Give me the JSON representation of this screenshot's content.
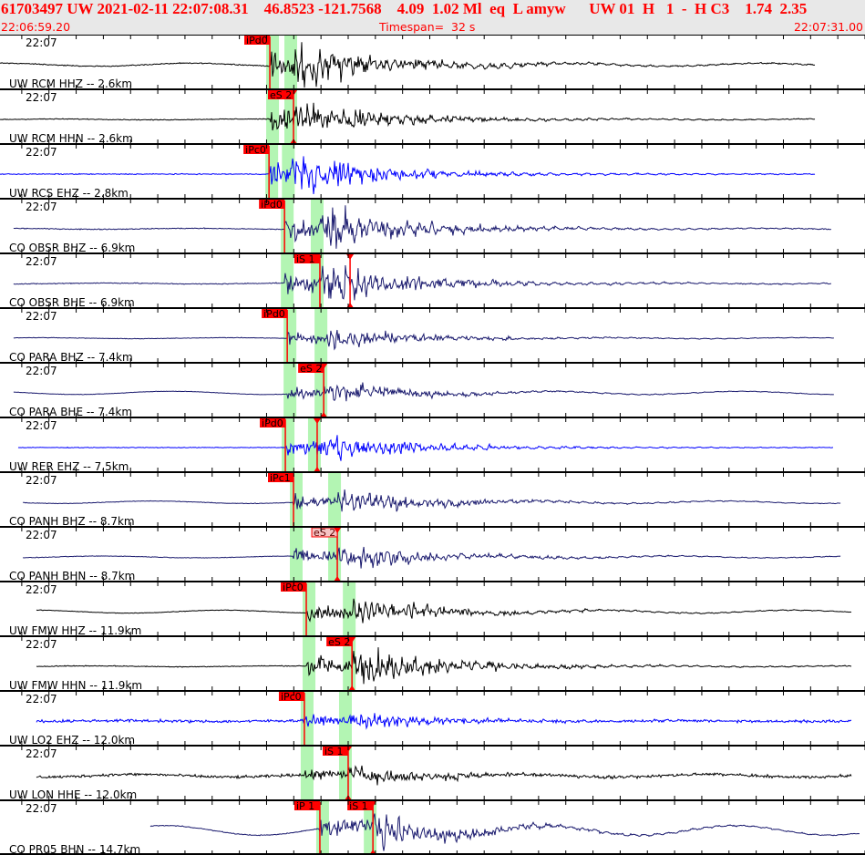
{
  "header": {
    "event_line": "61703497 UW 2021-02-11 22:07:08.31    46.8523 -121.7568    4.09  1.02 Ml  eq  L amyw      UW 01  H   1  -  H C3    1.74  2.35",
    "start_time": "22:06:59.20",
    "timespan": "Timespan=  32 s",
    "end_time": "22:07:31.00"
  },
  "window": {
    "start": "22:06:59.20",
    "end": "22:07:31.00",
    "tick_interval_s": 1
  },
  "colors": {
    "pick": "#ff0000",
    "window": "#b3f5b3",
    "pick_pending": "#f6c4c4",
    "header_bg": "#e8e8e8"
  },
  "panels": [
    {
      "time_label": "22:07",
      "station": "UW RCM HHZ -- 2.6km",
      "color": "#000000",
      "trace": [
        "22:06:59.20",
        "22:07:29.19"
      ],
      "p": "22:07:09.12",
      "s": "22:07:09.99",
      "amp": 1.0,
      "lf": 0.15,
      "picks": [
        {
          "label": "iPd0",
          "time": "22:07:09.12",
          "style": "auto"
        }
      ]
    },
    {
      "time_label": "22:07",
      "station": "UW RCM HHN -- 2.6km",
      "color": "#000000",
      "trace": [
        "22:06:59.20",
        "22:07:29.19"
      ],
      "p": "22:07:09.12",
      "s": "22:07:09.99",
      "amp": 0.8,
      "lf": 0.05,
      "picks": [
        {
          "label": "eS 2",
          "time": "22:07:09.99",
          "style": "auto",
          "tri": true
        }
      ]
    },
    {
      "time_label": "22:07",
      "station": "UW RCS EHZ -- 2.8km",
      "color": "#0000ff",
      "trace": [
        "22:06:59.20",
        "22:07:29.19"
      ],
      "p": "22:07:09.09",
      "s": "22:07:09.90",
      "amp": 0.9,
      "lf": 0,
      "picks": [
        {
          "label": "iPc0",
          "time": "22:07:09.09",
          "style": "auto"
        }
      ]
    },
    {
      "time_label": "22:07",
      "station": "CO OBSR BHZ -- 6.9km",
      "color": "#1a1a6e",
      "trace": [
        "22:06:59.70",
        "22:07:29.76"
      ],
      "p": "22:07:09.66",
      "s": "22:07:10.96",
      "amp": 0.9,
      "lf": 0.05,
      "picks": [
        {
          "label": "iPd0",
          "time": "22:07:09.66",
          "style": "auto"
        }
      ]
    },
    {
      "time_label": "22:07",
      "station": "CO OBSR BHE -- 6.9km",
      "color": "#1a1a6e",
      "trace": [
        "22:06:59.70",
        "22:07:29.76"
      ],
      "p": "22:07:09.66",
      "s": "22:07:10.96",
      "amp": 0.9,
      "lf": 0.05,
      "picks": [
        {
          "label": "iS 1",
          "time": "22:07:10.96",
          "style": "auto"
        },
        {
          "label": "",
          "time": "22:07:12.07",
          "style": "marker",
          "tri": true
        }
      ]
    },
    {
      "time_label": "22:07",
      "station": "CO PARA BHZ -- 7.4km",
      "color": "#1a1a6e",
      "trace": [
        "22:06:59.70",
        "22:07:29.86"
      ],
      "p": "22:07:09.76",
      "s": "22:07:11.10",
      "amp": 0.5,
      "lf": 0.1,
      "picks": [
        {
          "label": "iPd0",
          "time": "22:07:09.76",
          "style": "auto"
        }
      ]
    },
    {
      "time_label": "22:07",
      "station": "CO PARA BHE -- 7.4km",
      "color": "#1a1a6e",
      "trace": [
        "22:06:59.70",
        "22:07:29.86"
      ],
      "p": "22:07:09.76",
      "s": "22:07:11.10",
      "amp": 0.45,
      "lf": 0.35,
      "picks": [
        {
          "label": "eS 2",
          "time": "22:07:11.10",
          "style": "auto",
          "tri": true
        }
      ]
    },
    {
      "time_label": "22:07",
      "station": "UW RER EHZ -- 7.5km",
      "color": "#0000ff",
      "trace": [
        "22:06:59.87",
        "22:07:29.86"
      ],
      "p": "22:07:09.69",
      "s": "22:07:10.86",
      "amp": 0.65,
      "lf": 0,
      "picks": [
        {
          "label": "iPd0",
          "time": "22:07:09.69",
          "style": "auto"
        },
        {
          "label": "",
          "time": "22:07:10.86",
          "style": "marker",
          "tri": true
        }
      ]
    },
    {
      "time_label": "22:07",
      "station": "CO PANH BHZ -- 8.7km",
      "color": "#1a1a6e",
      "trace": [
        "22:07:00.04",
        "22:07:30.10"
      ],
      "p": "22:07:09.99",
      "s": "22:07:11.60",
      "amp": 0.6,
      "lf": 0.2,
      "picks": [
        {
          "label": "iPc1",
          "time": "22:07:09.99",
          "style": "auto"
        }
      ]
    },
    {
      "time_label": "22:07",
      "station": "CO PANH BHN -- 8.7km",
      "color": "#1a1a6e",
      "trace": [
        "22:07:00.04",
        "22:07:30.10"
      ],
      "p": "22:07:09.99",
      "s": "22:07:11.60",
      "amp": 0.6,
      "lf": 0.15,
      "picks": [
        {
          "label": "eS 2",
          "time": "22:07:11.60",
          "style": "pending",
          "tri": true
        }
      ]
    },
    {
      "time_label": "22:07",
      "station": "UW FMW HHZ -- 11.9km",
      "color": "#000000",
      "trace": [
        "22:07:00.54",
        "22:07:30.53"
      ],
      "p": "22:07:10.46",
      "s": "22:07:12.14",
      "amp": 0.6,
      "lf": 0.25,
      "picks": [
        {
          "label": "iPc0",
          "time": "22:07:10.46",
          "style": "auto"
        }
      ]
    },
    {
      "time_label": "22:07",
      "station": "UW FMW HHN -- 11.9km",
      "color": "#000000",
      "trace": [
        "22:07:00.54",
        "22:07:30.53"
      ],
      "p": "22:07:10.46",
      "s": "22:07:12.14",
      "amp": 0.85,
      "lf": 0.05,
      "picks": [
        {
          "label": "eS 2",
          "time": "22:07:12.14",
          "style": "auto",
          "tri": true
        }
      ]
    },
    {
      "time_label": "22:07",
      "station": "UW LO2 EHZ -- 12.0km",
      "color": "#0000ff",
      "trace": [
        "22:07:00.54",
        "22:07:30.53"
      ],
      "p": "22:07:10.39",
      "s": "22:07:12.00",
      "amp": 0.4,
      "lf": 0.1,
      "noise": 0.2,
      "picks": [
        {
          "label": "iPc0",
          "time": "22:07:10.39",
          "style": "auto"
        }
      ]
    },
    {
      "time_label": "22:07",
      "station": "UW LON HHE -- 12.0km",
      "color": "#000000",
      "trace": [
        "22:07:00.54",
        "22:07:30.53"
      ],
      "p": "22:07:10.39",
      "s": "22:07:12.00",
      "amp": 0.45,
      "lf": 0.3,
      "noise": 0.18,
      "picks": [
        {
          "label": "iS 1",
          "time": "22:07:12.00",
          "style": "auto",
          "tri": true
        }
      ]
    },
    {
      "time_label": "22:07",
      "station": "CO PR05 BHN -- 14.7km",
      "color": "#1a1a6e",
      "trace": [
        "22:07:04.73",
        "22:07:30.80"
      ],
      "p": "22:07:10.96",
      "s": "22:07:12.91",
      "amp": 0.8,
      "lf": 0.6,
      "picks": [
        {
          "label": "iP 1",
          "time": "22:07:10.96",
          "style": "auto"
        },
        {
          "label": "iS 1",
          "time": "22:07:12.91",
          "style": "auto",
          "tri": true
        }
      ]
    }
  ]
}
